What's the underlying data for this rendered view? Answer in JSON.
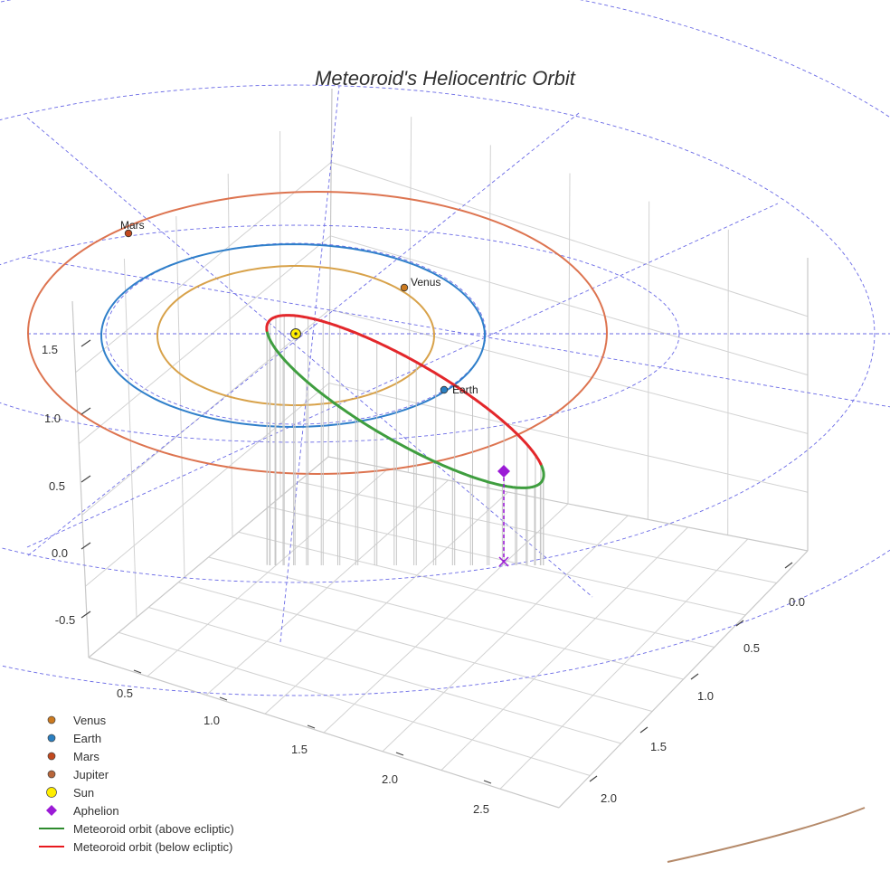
{
  "chart_data": {
    "type": "scatter",
    "title": "Meteoroid's Heliocentric Orbit",
    "axes": {
      "x": {
        "ticks": [
          "0.5",
          "1.0",
          "1.5",
          "2.0",
          "2.5"
        ]
      },
      "y": {
        "ticks": [
          "0.0",
          "0.5",
          "1.0",
          "1.5",
          "2.0"
        ]
      },
      "z": {
        "ticks": [
          "-0.5",
          "0.0",
          "0.5",
          "1.0",
          "1.5"
        ]
      }
    },
    "planet_points": [
      {
        "name": "Venus",
        "color": "#cc7a1f"
      },
      {
        "name": "Earth",
        "color": "#2a7fc1"
      },
      {
        "name": "Mars",
        "color": "#c2491e"
      }
    ],
    "planet_orbits": [
      {
        "name": "Venus",
        "color": "#d8a24a"
      },
      {
        "name": "Earth",
        "color": "#2f7fca"
      },
      {
        "name": "Mars",
        "color": "#dd7450"
      },
      {
        "name": "Jupiter",
        "color": "#b58a6a"
      }
    ],
    "series": [
      {
        "name": "Meteoroid orbit (above ecliptic)",
        "color": "#3f9e3f"
      },
      {
        "name": "Meteoroid orbit (below ecliptic)",
        "color": "#e3272b"
      }
    ],
    "legend": [
      {
        "label": "Venus",
        "symbol": "circle",
        "color": "#cc7a1f"
      },
      {
        "label": "Earth",
        "symbol": "circle",
        "color": "#2a7fc1"
      },
      {
        "label": "Mars",
        "symbol": "circle",
        "color": "#c2491e"
      },
      {
        "label": "Jupiter",
        "symbol": "circle",
        "color": "#b8663a"
      },
      {
        "label": "Sun",
        "symbol": "circle",
        "color": "#ffee00"
      },
      {
        "label": "Aphelion",
        "symbol": "diamond",
        "color": "#9b1bd6"
      },
      {
        "label": "Meteoroid orbit (above ecliptic)",
        "symbol": "line",
        "color": "#2e8b2e"
      },
      {
        "label": "Meteoroid orbit (below ecliptic)",
        "symbol": "line",
        "color": "#e8191e"
      }
    ],
    "grid": true,
    "legend_position": "bottom-left",
    "ecliptic_grid_color": "#6a6ae6"
  }
}
